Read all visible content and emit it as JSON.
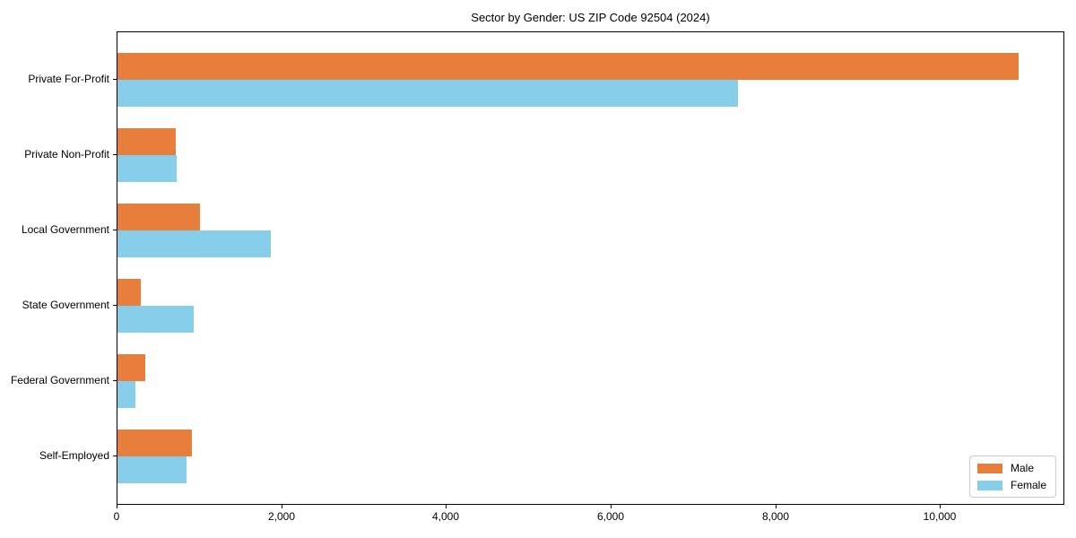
{
  "title": "Sector by Gender: US ZIP Code 92504 (2024)",
  "colors": {
    "male": "#E87E3B",
    "female": "#87CEEB",
    "axis": "#000000",
    "legend_border": "#cccccc",
    "background": "#ffffff"
  },
  "chart_data": {
    "type": "bar",
    "orientation": "horizontal",
    "title": "Sector by Gender: US ZIP Code 92504 (2024)",
    "categories": [
      "Private For-Profit",
      "Private Non-Profit",
      "Local Government",
      "State Government",
      "Federal Government",
      "Self-Employed"
    ],
    "series": [
      {
        "name": "Male",
        "color": "#E87E3B",
        "values": [
          10950,
          710,
          1000,
          280,
          340,
          900
        ]
      },
      {
        "name": "Female",
        "color": "#87CEEB",
        "values": [
          7540,
          720,
          1860,
          930,
          220,
          840
        ]
      }
    ],
    "xlabel": "",
    "ylabel": "",
    "xlim": [
      0,
      11490
    ],
    "x_ticks": [
      0,
      2000,
      4000,
      6000,
      8000,
      10000
    ],
    "x_tick_labels": [
      "0",
      "2,000",
      "4,000",
      "6,000",
      "8,000",
      "10,000"
    ],
    "grid": false,
    "legend": {
      "position": "lower right",
      "entries": [
        "Male",
        "Female"
      ]
    }
  }
}
